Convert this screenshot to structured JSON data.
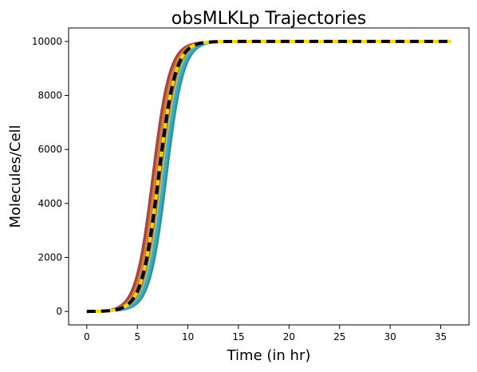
{
  "chart_data": {
    "type": "line",
    "title": "obsMLKLp Trajectories",
    "xlabel": "Time (in hr)",
    "ylabel": "Molecules/Cell",
    "xlim": [
      -1.8,
      37.8
    ],
    "ylim": [
      -500,
      10500
    ],
    "xticks": [
      0,
      5,
      10,
      15,
      20,
      25,
      30,
      35
    ],
    "yticks": [
      0,
      2000,
      4000,
      6000,
      8000,
      10000
    ],
    "x_end": 36,
    "grid": false,
    "legend": "none",
    "trajectory_plateau": 10000,
    "trajectories": [
      {
        "midpoint": 6.5,
        "color": "#1f77b4"
      },
      {
        "midpoint": 6.7,
        "color": "#ff7f0e"
      },
      {
        "midpoint": 6.5,
        "color": "#d62728"
      },
      {
        "midpoint": 6.9,
        "color": "#9467bd"
      },
      {
        "midpoint": 6.6,
        "color": "#8c564b"
      },
      {
        "midpoint": 7.1,
        "color": "#e377c2"
      },
      {
        "midpoint": 7.3,
        "color": "#7f7f7f"
      },
      {
        "midpoint": 7.5,
        "color": "#bcbd22"
      },
      {
        "midpoint": 7.6,
        "color": "#17becf"
      },
      {
        "midpoint": 7.8,
        "color": "#2ca02c"
      },
      {
        "midpoint": 7.9,
        "color": "#1f9e89"
      },
      {
        "midpoint": 7.7,
        "color": "#4c9be8"
      },
      {
        "midpoint": 7.2,
        "color": "#c0392b"
      },
      {
        "midpoint": 6.8,
        "color": "#e67e22"
      }
    ],
    "mean_trajectory": {
      "midpoint": 7.1,
      "color": "#000000"
    },
    "reference_trajectory": {
      "midpoint": 7.1,
      "color": "#ffd700"
    }
  }
}
